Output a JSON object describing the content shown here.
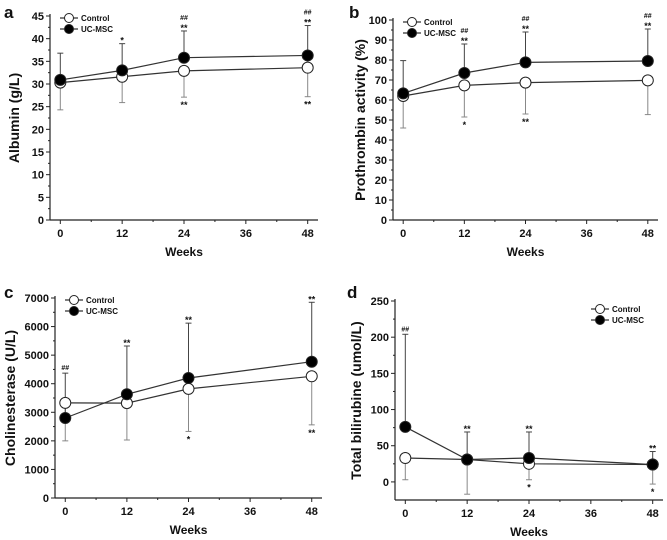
{
  "chart_data": [
    {
      "panel": "a",
      "type": "line",
      "xlabel": "Weeks",
      "ylabel": "Albumin (g/L)",
      "x": [
        0,
        12,
        24,
        48
      ],
      "xticks": [
        0,
        12,
        24,
        36,
        48
      ],
      "xlim": [
        -2,
        50
      ],
      "ylim": [
        0,
        45
      ],
      "yticks": [
        0,
        5,
        10,
        15,
        20,
        25,
        30,
        35,
        40,
        45
      ],
      "legend": "top-left",
      "grid": false,
      "series": [
        {
          "name": "Control",
          "marker": "open-circle",
          "values": [
            30.3,
            31.6,
            32.9,
            33.6
          ],
          "err_low": [
            24.3,
            25.9,
            27.1,
            27.2
          ]
        },
        {
          "name": "UC-MSC",
          "marker": "filled-circle",
          "values": [
            30.9,
            33.0,
            35.8,
            36.3
          ],
          "err_high": [
            36.8,
            38.9,
            41.7,
            42.9
          ]
        }
      ],
      "annotations_above": [
        [],
        [
          "*"
        ],
        [
          "##",
          "**"
        ],
        [
          "##",
          "**"
        ]
      ],
      "annotations_below": [
        [],
        [],
        [
          "**"
        ],
        [
          "**"
        ]
      ]
    },
    {
      "panel": "b",
      "type": "line",
      "xlabel": "Weeks",
      "ylabel": "Prothrombin activity (%)",
      "x": [
        0,
        12,
        24,
        48
      ],
      "xticks": [
        0,
        12,
        24,
        36,
        48
      ],
      "xlim": [
        -2,
        50
      ],
      "ylim": [
        0,
        100
      ],
      "yticks": [
        0,
        10,
        20,
        30,
        40,
        50,
        60,
        70,
        80,
        90,
        100
      ],
      "legend": "top-left",
      "grid": false,
      "series": [
        {
          "name": "Control",
          "marker": "open-circle",
          "values": [
            62.0,
            67.3,
            68.7,
            69.8
          ],
          "err_low": [
            46.0,
            51.5,
            53.0,
            52.7
          ]
        },
        {
          "name": "UC-MSC",
          "marker": "filled-circle",
          "values": [
            63.3,
            73.5,
            78.8,
            79.5
          ],
          "err_high": [
            79.7,
            88.0,
            94.0,
            95.5
          ]
        }
      ],
      "annotations_above": [
        [],
        [
          "##",
          "**"
        ],
        [
          "##",
          "**"
        ],
        [
          "##",
          "**"
        ]
      ],
      "annotations_below": [
        [],
        [
          "*"
        ],
        [
          "**"
        ],
        []
      ]
    },
    {
      "panel": "c",
      "type": "line",
      "xlabel": "Weeks",
      "ylabel": "Cholinesterase (U/L)",
      "x": [
        0,
        12,
        24,
        48
      ],
      "xticks": [
        0,
        12,
        24,
        36,
        48
      ],
      "xlim": [
        -2,
        50
      ],
      "ylim": [
        0,
        7000
      ],
      "yticks": [
        0,
        1000,
        2000,
        3000,
        4000,
        5000,
        6000,
        7000
      ],
      "legend": "top-left",
      "grid": false,
      "series": [
        {
          "name": "Control",
          "marker": "open-circle",
          "values": [
            3330,
            3320,
            3820,
            4260
          ],
          "err_low": [
            2000,
            2030,
            2330,
            2560
          ]
        },
        {
          "name": "UC-MSC",
          "marker": "filled-circle",
          "values": [
            2800,
            3630,
            4200,
            4770
          ],
          "err_high": [
            4370,
            5320,
            6120,
            6850
          ]
        }
      ],
      "annotations_above": [
        [
          "##"
        ],
        [
          "**"
        ],
        [
          "**"
        ],
        [
          "**"
        ]
      ],
      "annotations_below": [
        [],
        [],
        [
          "*"
        ],
        [
          "**"
        ]
      ]
    },
    {
      "panel": "d",
      "type": "line",
      "xlabel": "Weeks",
      "ylabel": "Total bilirubine (umol/L)",
      "x": [
        0,
        12,
        24,
        48
      ],
      "xticks": [
        0,
        12,
        24,
        36,
        48
      ],
      "xlim": [
        -2,
        50
      ],
      "ylim": [
        -25,
        250
      ],
      "yticks": [
        0,
        50,
        100,
        150,
        200,
        250
      ],
      "legend": "top-right",
      "grid": false,
      "series": [
        {
          "name": "Control",
          "marker": "open-circle",
          "values": [
            33,
            31,
            25,
            24
          ],
          "err_low": [
            3,
            -17,
            3,
            -3
          ]
        },
        {
          "name": "UC-MSC",
          "marker": "filled-circle",
          "values": [
            76,
            31,
            33,
            24
          ],
          "err_high": [
            204,
            69,
            69,
            42
          ]
        }
      ],
      "annotations_above": [
        [
          "##"
        ],
        [
          "**"
        ],
        [
          "**"
        ],
        [
          "**"
        ]
      ],
      "annotations_below": [
        [],
        [],
        [
          "*"
        ],
        [
          "*"
        ]
      ]
    }
  ]
}
